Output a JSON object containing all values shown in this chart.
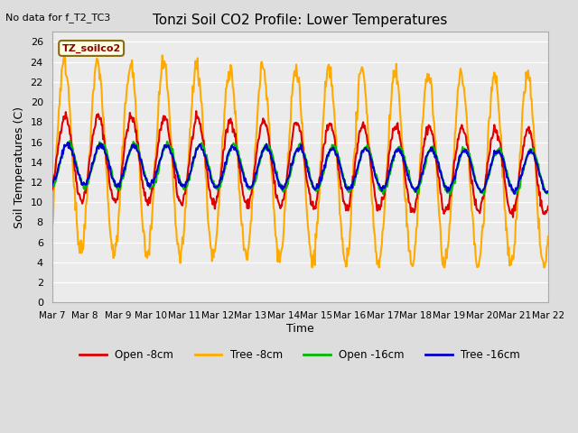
{
  "title": "Tonzi Soil CO2 Profile: Lower Temperatures",
  "ylabel": "Soil Temperatures (C)",
  "xlabel": "Time",
  "top_left_note": "No data for f_T2_TC3",
  "legend_label": "TZ_soilco2",
  "ylim": [
    0,
    27
  ],
  "yticks": [
    0,
    2,
    4,
    6,
    8,
    10,
    12,
    14,
    16,
    18,
    20,
    22,
    24,
    26
  ],
  "colors": {
    "open_8cm": "#dd0000",
    "tree_8cm": "#ffaa00",
    "open_16cm": "#00bb00",
    "tree_16cm": "#0000cc"
  },
  "legend_items": [
    {
      "label": "Open -8cm",
      "color": "#dd0000"
    },
    {
      "label": "Tree -8cm",
      "color": "#ffaa00"
    },
    {
      "label": "Open -16cm",
      "color": "#00bb00"
    },
    {
      "label": "Tree -16cm",
      "color": "#0000cc"
    }
  ],
  "xtick_labels": [
    "Mar 7",
    "Mar 8",
    "Mar 9",
    "Mar 10",
    "Mar 11",
    "Mar 12",
    "Mar 13",
    "Mar 14",
    "Mar 15",
    "Mar 16",
    "Mar 17",
    "Mar 18",
    "Mar 19",
    "Mar 20",
    "Mar 21",
    "Mar 22"
  ],
  "n_days": 15,
  "bg_color": "#dddddd",
  "plot_bg": "#ebebeb",
  "line_width": 1.5
}
